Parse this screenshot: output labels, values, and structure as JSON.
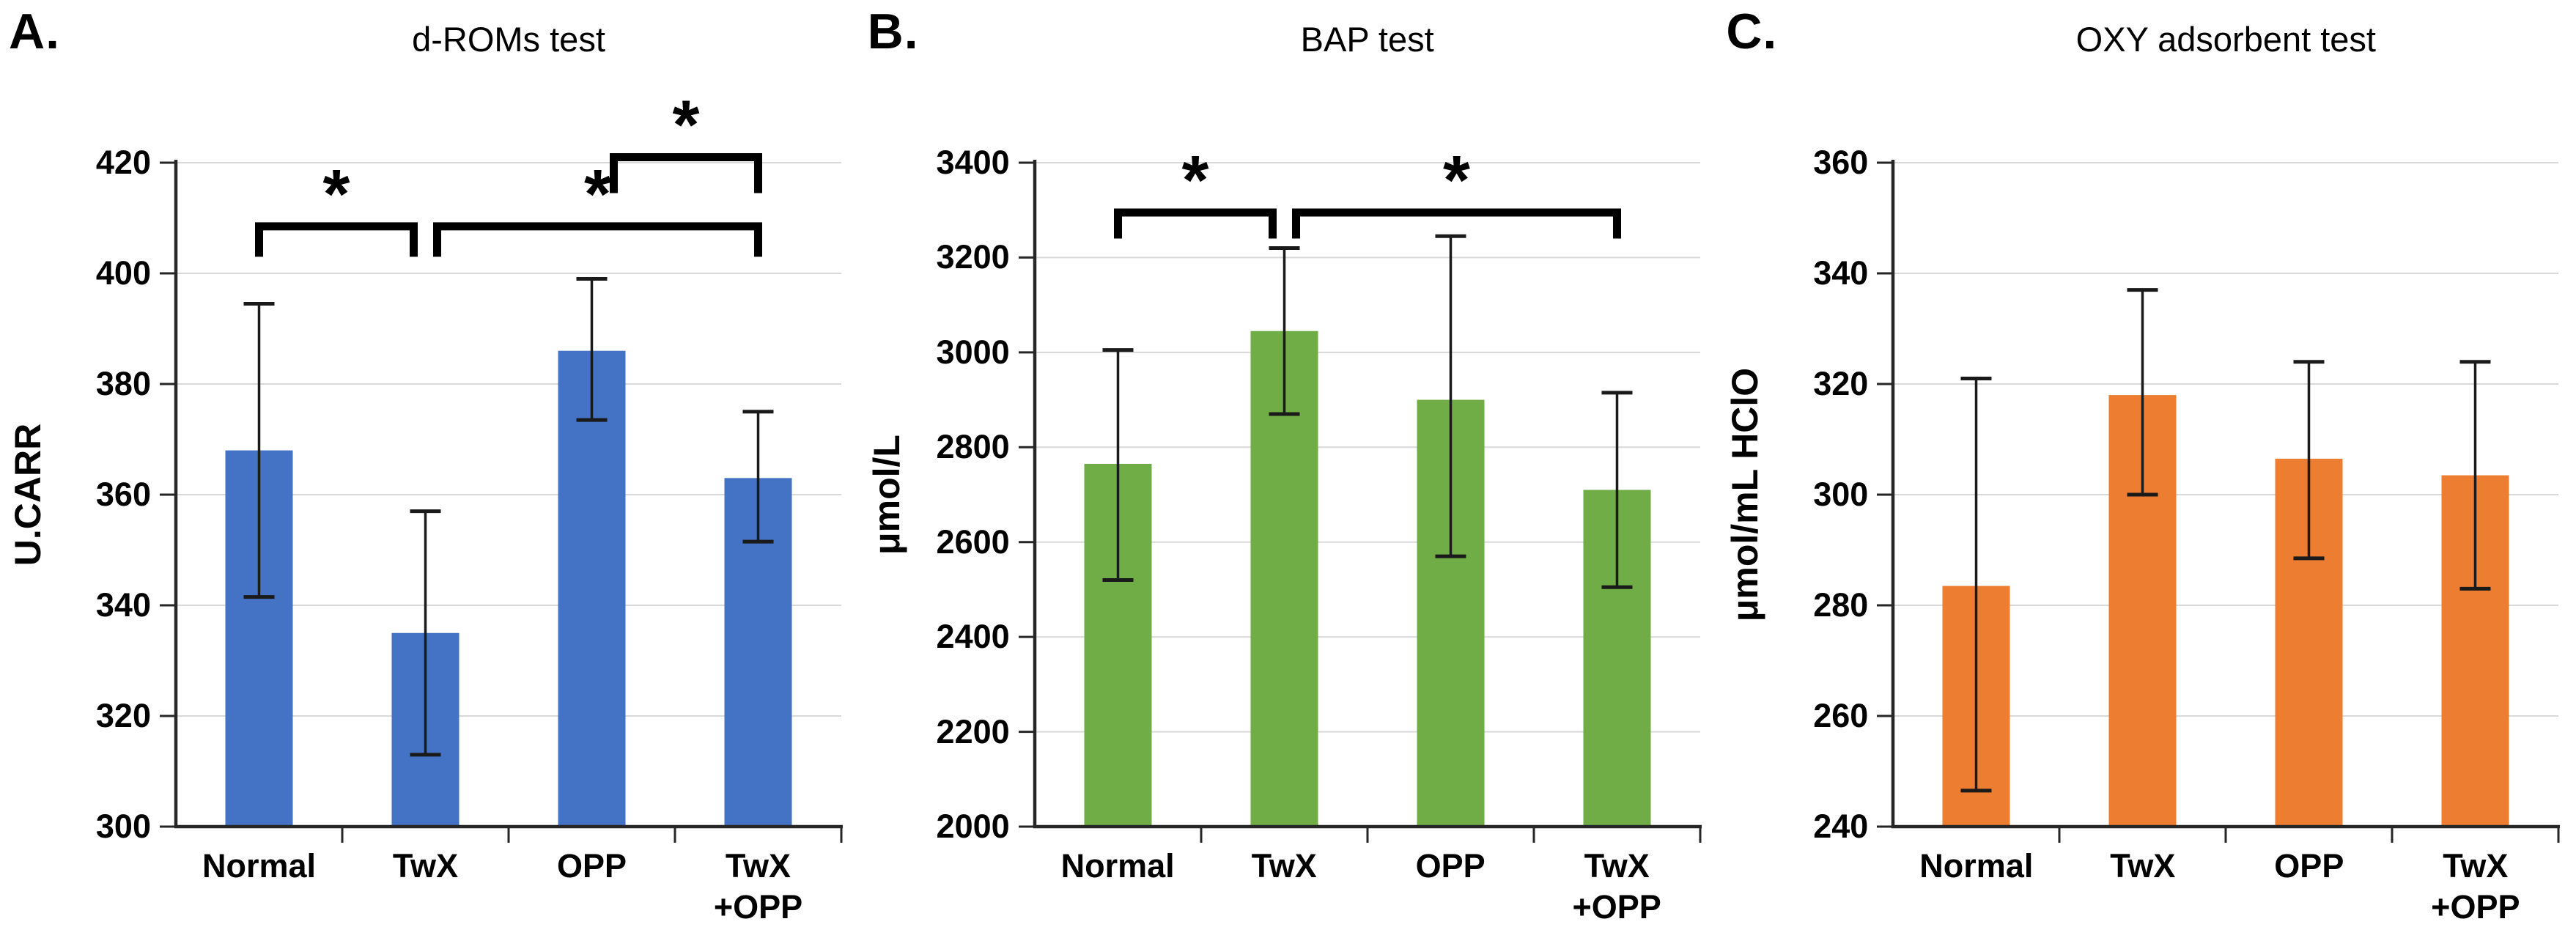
{
  "figure_background": "#ffffff",
  "chart_data": [
    {
      "type": "bar",
      "panel_letter": "A.",
      "title": "d-ROMs test",
      "ylabel": "U.CARR",
      "ylim": [
        300,
        420
      ],
      "ytick_labels": [
        "300",
        "320",
        "340",
        "360",
        "380",
        "400",
        "420"
      ],
      "grid": true,
      "legend_position": "none",
      "categories": [
        [
          "Normal"
        ],
        [
          "TwX"
        ],
        [
          "OPP"
        ],
        [
          "TwX",
          "+OPP"
        ]
      ],
      "values": [
        368,
        335,
        386,
        363
      ],
      "error_low": [
        341.5,
        313,
        373.5,
        351.5
      ],
      "error_high": [
        394.5,
        357,
        399,
        375
      ],
      "bar_color": "#4472C4",
      "significance": [
        {
          "from": 0,
          "to": 1,
          "label": "*",
          "y_top": 408.5,
          "y_drop": 403,
          "inset_from": 0,
          "inset_to": -16
        },
        {
          "from": 1,
          "to": 3,
          "label": "*",
          "y_top": 408.5,
          "y_drop": 403,
          "inset_from": 16,
          "inset_to": 0
        },
        {
          "from": 2,
          "to": 3,
          "label": "*",
          "y_top": 421,
          "y_drop": 414.5,
          "inset_from": 30,
          "inset_to": 0
        }
      ]
    },
    {
      "type": "bar",
      "panel_letter": "B.",
      "title": "BAP test",
      "ylabel": "μmol/L",
      "ylim": [
        2000,
        3400
      ],
      "ytick_labels": [
        "2000",
        "2200",
        "2400",
        "2600",
        "2800",
        "3000",
        "3200",
        "3400"
      ],
      "grid": true,
      "legend_position": "none",
      "categories": [
        [
          "Normal"
        ],
        [
          "TwX"
        ],
        [
          "OPP"
        ],
        [
          "TwX",
          "+OPP"
        ]
      ],
      "values": [
        2765,
        3045,
        2900,
        2710
      ],
      "error_low": [
        2520,
        2870,
        2570,
        2505
      ],
      "error_high": [
        3005,
        3220,
        3245,
        2915
      ],
      "bar_color": "#70AD47",
      "significance": [
        {
          "from": 0,
          "to": 1,
          "label": "*",
          "y_top": 3295,
          "y_drop": 3240,
          "inset_from": 0,
          "inset_to": -16
        },
        {
          "from": 1,
          "to": 3,
          "label": "*",
          "y_top": 3295,
          "y_drop": 3240,
          "inset_from": 16,
          "inset_to": 0
        }
      ]
    },
    {
      "type": "bar",
      "panel_letter": "C.",
      "title": "OXY adsorbent test",
      "ylabel": "μmol/mL HClO",
      "ylim": [
        240,
        360
      ],
      "ytick_labels": [
        "240",
        "260",
        "280",
        "300",
        "320",
        "340",
        "360"
      ],
      "grid": true,
      "legend_position": "none",
      "categories": [
        [
          "Normal"
        ],
        [
          "TwX"
        ],
        [
          "OPP"
        ],
        [
          "TwX",
          "+OPP"
        ]
      ],
      "values": [
        283.5,
        318,
        306.5,
        303.5
      ],
      "error_low": [
        246.5,
        300,
        288.5,
        283
      ],
      "error_high": [
        321,
        337,
        324,
        324
      ],
      "bar_color": "#ED7D31",
      "significance": []
    }
  ],
  "style_colors": {
    "gridline": "#d9d9d9",
    "axis": "#262626",
    "error_bar": "#1a1a1a",
    "bracket": "#000000",
    "text": "#000000"
  }
}
